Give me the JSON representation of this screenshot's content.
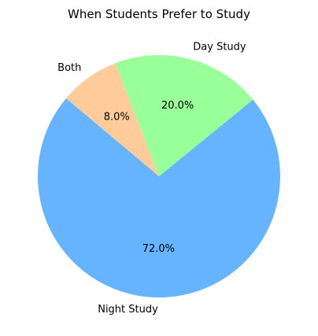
{
  "chart_data": {
    "type": "pie",
    "title": "When Students Prefer to Study",
    "start_angle_deg": 140,
    "direction": "counterclockwise",
    "slices": [
      {
        "label": "Night Study",
        "value": 72.0,
        "pct_label": "72.0%",
        "color": "#66b3ff"
      },
      {
        "label": "Day Study",
        "value": 20.0,
        "pct_label": "20.0%",
        "color": "#99ff99"
      },
      {
        "label": "Both",
        "value": 8.0,
        "pct_label": "8.0%",
        "color": "#ffcc99"
      }
    ]
  }
}
